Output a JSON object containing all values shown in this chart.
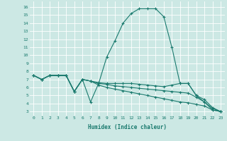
{
  "xlabel": "Humidex (Indice chaleur)",
  "bg_color": "#cce8e4",
  "grid_color": "#ffffff",
  "line_color": "#1a7a6e",
  "xlim": [
    -0.5,
    23.5
  ],
  "ylim": [
    2.5,
    16.7
  ],
  "yticks": [
    3,
    4,
    5,
    6,
    7,
    8,
    9,
    10,
    11,
    12,
    13,
    14,
    15,
    16
  ],
  "xticks": [
    0,
    1,
    2,
    3,
    4,
    5,
    6,
    7,
    8,
    9,
    10,
    11,
    12,
    13,
    14,
    15,
    16,
    17,
    18,
    19,
    20,
    21,
    22,
    23
  ],
  "lines": [
    {
      "x": [
        0,
        1,
        2,
        3,
        4,
        5,
        6,
        7,
        8,
        9,
        10,
        11,
        12,
        13,
        14,
        15,
        16,
        17,
        18,
        19,
        20,
        21,
        22,
        23
      ],
      "y": [
        7.5,
        7.0,
        7.5,
        7.5,
        7.5,
        5.5,
        7.0,
        4.2,
        6.5,
        9.8,
        11.8,
        14.0,
        15.2,
        15.8,
        15.8,
        15.8,
        14.8,
        11.0,
        6.5,
        6.5,
        5.0,
        4.2,
        3.2,
        3.0
      ]
    },
    {
      "x": [
        0,
        1,
        2,
        3,
        4,
        5,
        6,
        7,
        8,
        9,
        10,
        11,
        12,
        13,
        14,
        15,
        16,
        17,
        18,
        19,
        20,
        21,
        22,
        23
      ],
      "y": [
        7.5,
        7.0,
        7.5,
        7.5,
        7.5,
        5.5,
        7.0,
        6.8,
        6.6,
        6.5,
        6.5,
        6.5,
        6.5,
        6.4,
        6.3,
        6.2,
        6.1,
        6.3,
        6.5,
        6.5,
        5.0,
        4.5,
        3.5,
        3.0
      ]
    },
    {
      "x": [
        0,
        1,
        2,
        3,
        4,
        5,
        6,
        7,
        8,
        9,
        10,
        11,
        12,
        13,
        14,
        15,
        16,
        17,
        18,
        19,
        20,
        21,
        22,
        23
      ],
      "y": [
        7.5,
        7.0,
        7.5,
        7.5,
        7.5,
        5.5,
        7.0,
        6.8,
        6.5,
        6.4,
        6.2,
        6.1,
        6.0,
        5.9,
        5.8,
        5.7,
        5.6,
        5.5,
        5.4,
        5.3,
        4.8,
        4.2,
        3.4,
        3.0
      ]
    },
    {
      "x": [
        0,
        1,
        2,
        3,
        4,
        5,
        6,
        7,
        8,
        9,
        10,
        11,
        12,
        13,
        14,
        15,
        16,
        17,
        18,
        19,
        20,
        21,
        22,
        23
      ],
      "y": [
        7.5,
        7.0,
        7.5,
        7.5,
        7.5,
        5.5,
        7.0,
        6.8,
        6.3,
        6.0,
        5.8,
        5.6,
        5.4,
        5.2,
        5.0,
        4.8,
        4.6,
        4.4,
        4.2,
        4.1,
        3.9,
        3.7,
        3.2,
        3.0
      ]
    }
  ]
}
